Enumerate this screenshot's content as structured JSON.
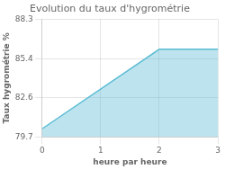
{
  "chart_data": {
    "type": "area",
    "title": "Evolution du taux d'hygrométrie",
    "xlabel": "heure par heure",
    "ylabel": "Taux hygrométrie %",
    "x": [
      0,
      2,
      3
    ],
    "values": [
      80.3,
      86.1,
      86.1
    ],
    "color": "#5bbcd4",
    "xlim": [
      0,
      3
    ],
    "xticks": [
      0,
      1,
      2,
      3
    ],
    "ylim": [
      79.7,
      88.3
    ],
    "yticks": [
      79.7,
      82.6,
      85.4,
      88.3
    ],
    "grid": true
  }
}
